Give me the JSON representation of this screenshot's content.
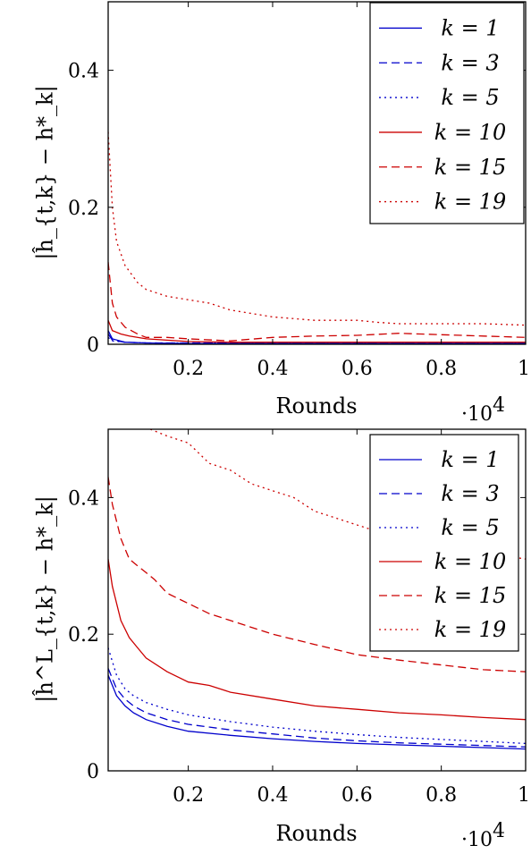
{
  "chart_data": [
    {
      "type": "line",
      "xlabel": "Rounds",
      "ylabel": "|ĥ_{t,k} − h*_k|",
      "x_multiplier_label": "·10",
      "x_multiplier_exp": "4",
      "xlim": [
        0.01,
        1.0
      ],
      "ylim": [
        0,
        0.5
      ],
      "xticks": [
        0.2,
        0.4,
        0.6,
        0.8,
        1
      ],
      "xtick_labels": [
        "0.2",
        "0.4",
        "0.6",
        "0.8",
        "1"
      ],
      "yticks": [
        0,
        0.2,
        0.4
      ],
      "ytick_labels": [
        "0",
        "0.2",
        "0.4"
      ],
      "legend_position": "top-right",
      "series": [
        {
          "name": "k = 1",
          "legend_label": "k = 1",
          "color": "#0000cc",
          "dash": "solid",
          "x": [
            0.01,
            0.02,
            0.05,
            0.1,
            0.2,
            0.4,
            0.6,
            0.8,
            1.0
          ],
          "y": [
            0.02,
            0.008,
            0.003,
            0.002,
            0.001,
            0.001,
            0.001,
            0.001,
            0.001
          ]
        },
        {
          "name": "k = 3",
          "legend_label": "k = 3",
          "color": "#0000cc",
          "dash": "dashed",
          "x": [
            0.01,
            0.02,
            0.05,
            0.1,
            0.2,
            0.4,
            0.6,
            0.8,
            1.0
          ],
          "y": [
            0.015,
            0.006,
            0.003,
            0.002,
            0.002,
            0.002,
            0.002,
            0.002,
            0.002
          ]
        },
        {
          "name": "k = 5",
          "legend_label": "k = 5",
          "color": "#0000cc",
          "dash": "dotted",
          "x": [
            0.01,
            0.02,
            0.05,
            0.1,
            0.2,
            0.4,
            0.6,
            0.8,
            1.0
          ],
          "y": [
            0.01,
            0.005,
            0.003,
            0.002,
            0.002,
            0.002,
            0.002,
            0.002,
            0.002
          ]
        },
        {
          "name": "k = 10",
          "legend_label": "k = 10",
          "color": "#cc0000",
          "dash": "solid",
          "x": [
            0.01,
            0.02,
            0.04,
            0.06,
            0.1,
            0.2,
            0.3,
            0.4,
            0.6,
            0.8,
            1.0
          ],
          "y": [
            0.035,
            0.02,
            0.015,
            0.012,
            0.008,
            0.004,
            0.003,
            0.003,
            0.003,
            0.003,
            0.003
          ]
        },
        {
          "name": "k = 15",
          "legend_label": "k = 15",
          "color": "#cc0000",
          "dash": "dashed",
          "x": [
            0.01,
            0.02,
            0.03,
            0.05,
            0.08,
            0.1,
            0.15,
            0.2,
            0.3,
            0.4,
            0.5,
            0.6,
            0.7,
            0.8,
            0.9,
            1.0
          ],
          "y": [
            0.12,
            0.06,
            0.04,
            0.025,
            0.015,
            0.01,
            0.01,
            0.008,
            0.005,
            0.01,
            0.012,
            0.013,
            0.016,
            0.014,
            0.012,
            0.01
          ]
        },
        {
          "name": "k = 19",
          "legend_label": "k = 19",
          "color": "#cc0000",
          "dash": "dotted",
          "x": [
            0.01,
            0.02,
            0.03,
            0.05,
            0.08,
            0.1,
            0.15,
            0.2,
            0.25,
            0.3,
            0.4,
            0.5,
            0.6,
            0.65,
            0.7,
            0.8,
            0.9,
            1.0
          ],
          "y": [
            0.31,
            0.2,
            0.15,
            0.115,
            0.09,
            0.08,
            0.07,
            0.065,
            0.06,
            0.05,
            0.04,
            0.035,
            0.035,
            0.032,
            0.03,
            0.03,
            0.03,
            0.028
          ]
        }
      ]
    },
    {
      "type": "line",
      "xlabel": "Rounds",
      "ylabel": "|ĥ^L_{t,k} − h*_k|",
      "x_multiplier_label": "·10",
      "x_multiplier_exp": "4",
      "xlim": [
        0.01,
        1.0
      ],
      "ylim": [
        0,
        0.5
      ],
      "xticks": [
        0.2,
        0.4,
        0.6,
        0.8,
        1
      ],
      "xtick_labels": [
        "0.2",
        "0.4",
        "0.6",
        "0.8",
        "1"
      ],
      "yticks": [
        0,
        0.2,
        0.4
      ],
      "ytick_labels": [
        "0",
        "0.2",
        "0.4"
      ],
      "legend_position": "top-right",
      "series": [
        {
          "name": "k = 1",
          "legend_label": "k = 1",
          "color": "#0000cc",
          "dash": "solid",
          "x": [
            0.01,
            0.03,
            0.05,
            0.07,
            0.1,
            0.15,
            0.2,
            0.3,
            0.4,
            0.5,
            0.6,
            0.7,
            0.8,
            0.9,
            1.0
          ],
          "y": [
            0.14,
            0.11,
            0.095,
            0.085,
            0.075,
            0.065,
            0.058,
            0.052,
            0.047,
            0.043,
            0.04,
            0.038,
            0.036,
            0.034,
            0.032
          ]
        },
        {
          "name": "k = 3",
          "legend_label": "k = 3",
          "color": "#0000cc",
          "dash": "dashed",
          "x": [
            0.01,
            0.03,
            0.05,
            0.07,
            0.1,
            0.15,
            0.2,
            0.3,
            0.4,
            0.5,
            0.6,
            0.7,
            0.8,
            0.9,
            1.0
          ],
          "y": [
            0.15,
            0.12,
            0.105,
            0.095,
            0.085,
            0.075,
            0.068,
            0.06,
            0.054,
            0.048,
            0.044,
            0.041,
            0.039,
            0.037,
            0.035
          ]
        },
        {
          "name": "k = 5",
          "legend_label": "k = 5",
          "color": "#0000cc",
          "dash": "dotted",
          "x": [
            0.01,
            0.03,
            0.05,
            0.07,
            0.1,
            0.15,
            0.2,
            0.3,
            0.4,
            0.5,
            0.6,
            0.7,
            0.8,
            0.9,
            1.0
          ],
          "y": [
            0.18,
            0.14,
            0.12,
            0.11,
            0.1,
            0.09,
            0.082,
            0.072,
            0.064,
            0.058,
            0.053,
            0.049,
            0.046,
            0.043,
            0.04
          ]
        },
        {
          "name": "k = 10",
          "legend_label": "k = 10",
          "color": "#cc0000",
          "dash": "solid",
          "x": [
            0.01,
            0.02,
            0.04,
            0.06,
            0.08,
            0.1,
            0.15,
            0.2,
            0.25,
            0.3,
            0.4,
            0.5,
            0.6,
            0.7,
            0.8,
            0.9,
            1.0
          ],
          "y": [
            0.31,
            0.27,
            0.22,
            0.195,
            0.18,
            0.165,
            0.145,
            0.13,
            0.125,
            0.115,
            0.105,
            0.095,
            0.09,
            0.085,
            0.082,
            0.078,
            0.075
          ]
        },
        {
          "name": "k = 15",
          "legend_label": "k = 15",
          "color": "#cc0000",
          "dash": "dashed",
          "x": [
            0.01,
            0.02,
            0.04,
            0.06,
            0.08,
            0.1,
            0.12,
            0.15,
            0.2,
            0.25,
            0.3,
            0.4,
            0.5,
            0.6,
            0.7,
            0.8,
            0.9,
            1.0
          ],
          "y": [
            0.43,
            0.39,
            0.34,
            0.31,
            0.3,
            0.29,
            0.28,
            0.26,
            0.245,
            0.23,
            0.22,
            0.2,
            0.185,
            0.17,
            0.162,
            0.155,
            0.148,
            0.145
          ]
        },
        {
          "name": "k = 19",
          "legend_label": "k = 19",
          "color": "#cc0000",
          "dash": "dotted",
          "x": [
            0.11,
            0.15,
            0.2,
            0.25,
            0.3,
            0.35,
            0.4,
            0.45,
            0.5,
            0.55,
            0.6,
            0.65,
            0.7,
            0.8,
            0.9,
            1.0
          ],
          "y": [
            0.5,
            0.49,
            0.48,
            0.45,
            0.44,
            0.42,
            0.41,
            0.4,
            0.38,
            0.37,
            0.36,
            0.35,
            0.34,
            0.33,
            0.32,
            0.31
          ]
        }
      ]
    }
  ]
}
